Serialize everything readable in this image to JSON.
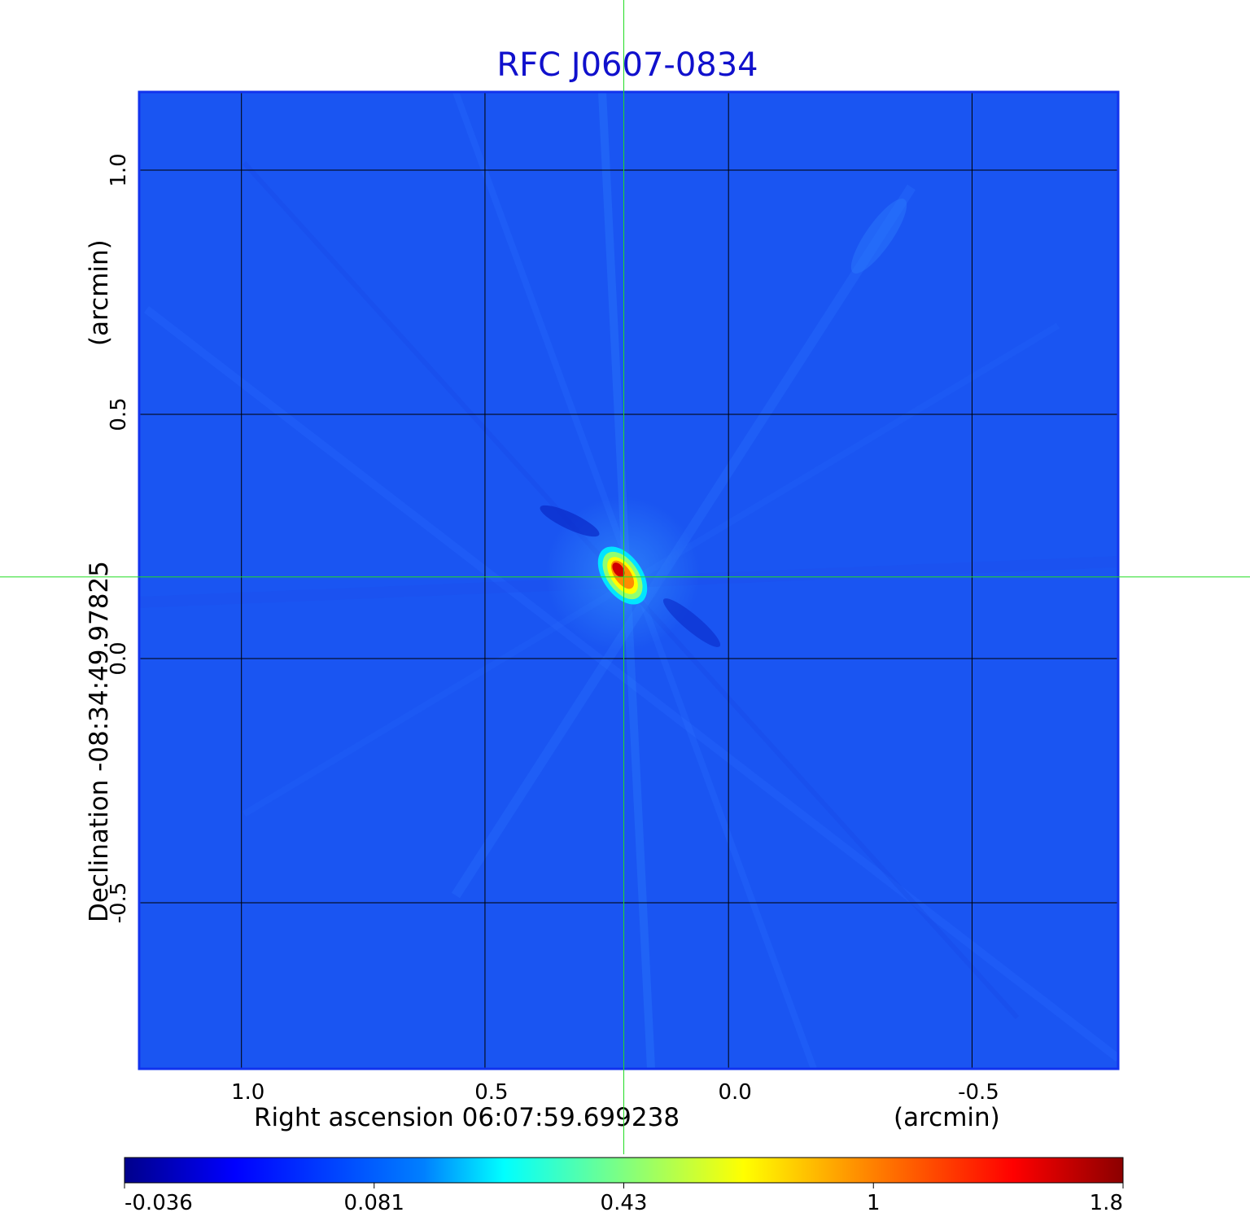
{
  "chart_data": {
    "type": "heatmap",
    "title": "RFC J0607-0834",
    "x_axis": {
      "label_main": "Right ascension  06:07:59.699238",
      "label_unit": "(arcmin)",
      "ticks": [
        {
          "value": 1.0,
          "label": "1.0"
        },
        {
          "value": 0.5,
          "label": "0.5"
        },
        {
          "value": 0.0,
          "label": "0.0"
        },
        {
          "value": -0.5,
          "label": "-0.5"
        }
      ],
      "range": [
        1.21,
        -0.8
      ]
    },
    "y_axis": {
      "label_main": "Declination  -08:34:49.97825",
      "label_unit": "(arcmin)",
      "ticks": [
        {
          "value": 1.0,
          "label": "1.0"
        },
        {
          "value": 0.5,
          "label": "0.5"
        },
        {
          "value": 0.0,
          "label": "0.0"
        },
        {
          "value": -0.5,
          "label": "-0.5"
        }
      ],
      "range": [
        -0.84,
        1.16
      ]
    },
    "grid": true,
    "crosshair": {
      "x": 0.215,
      "y": 0.167,
      "color": "#22dd22"
    },
    "peak_source": {
      "x": 0.215,
      "y": 0.167,
      "value": 1.8
    },
    "colorbar": {
      "colormap": "jet",
      "tick_labels": [
        "-0.036",
        "0.081",
        "0.43",
        "1",
        "1.8"
      ]
    },
    "colors": {
      "background_field": "#1a55f2",
      "frame": "#1133ee",
      "title": "#1010cc",
      "grid": "#000000"
    }
  }
}
